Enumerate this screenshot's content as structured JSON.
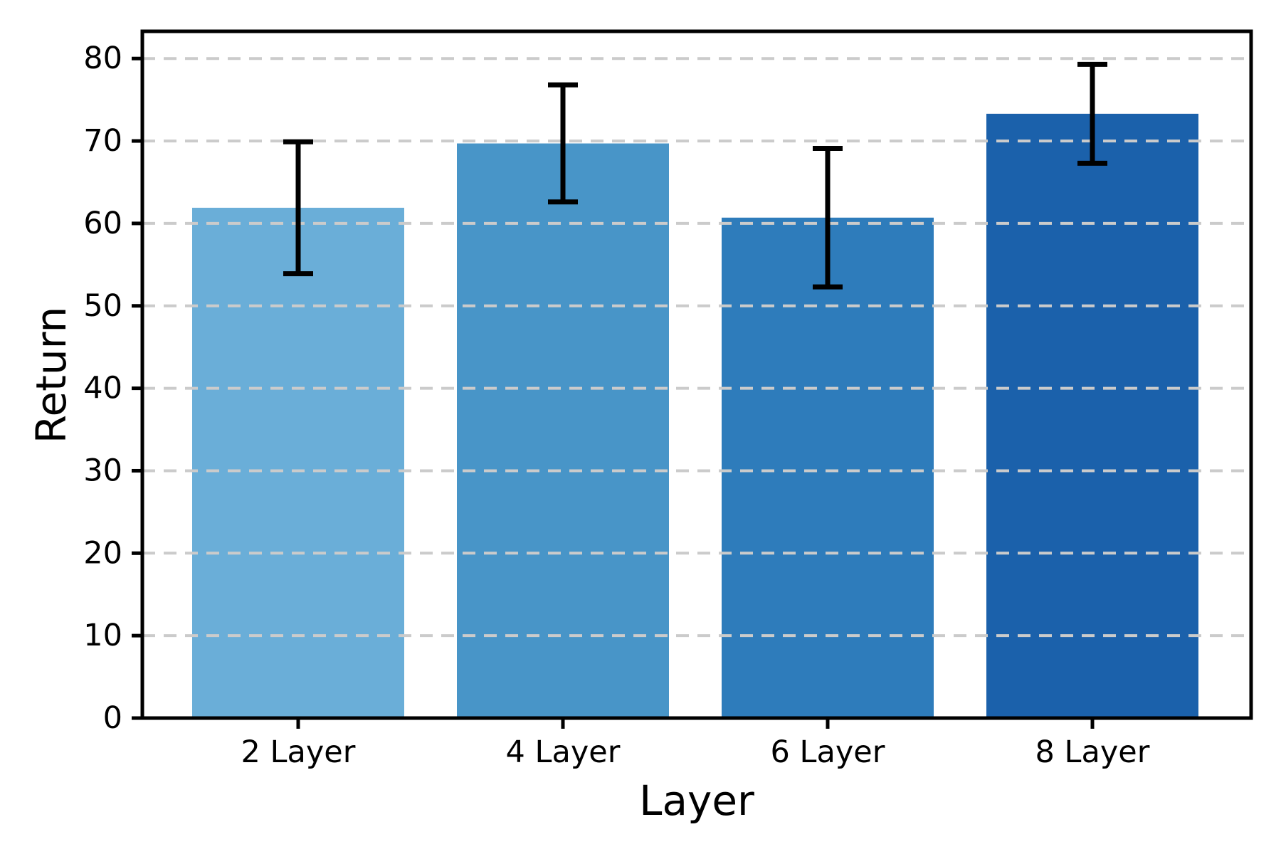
{
  "chart_data": {
    "type": "bar",
    "title": "",
    "xlabel": "Layer",
    "ylabel": "Return",
    "categories": [
      "2 Layer",
      "4 Layer",
      "6 Layer",
      "8 Layer"
    ],
    "values": [
      61.9,
      69.7,
      60.7,
      73.3
    ],
    "errors": [
      8.0,
      7.1,
      8.4,
      6.0
    ],
    "bar_colors": [
      "#6aaed8",
      "#4895c8",
      "#2e7cbb",
      "#1b61ab"
    ],
    "yticks": [
      0,
      10,
      20,
      30,
      40,
      50,
      60,
      70,
      80
    ],
    "ylim": [
      0,
      83.3
    ],
    "legend": "none",
    "grid": {
      "show": true,
      "axis": "y",
      "style": "dashed",
      "color": "#cbcbcb",
      "above_bars": true
    },
    "error_bar_style": {
      "color": "#000000",
      "capped": true
    },
    "frame_color": "#000000",
    "background_color": "#ffffff"
  }
}
